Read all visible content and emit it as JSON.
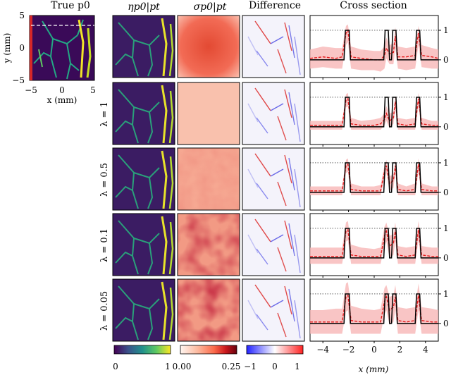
{
  "headers": {
    "true_p0": "True p0",
    "eta": "ηp0|pt",
    "sigma": "σp0|pt",
    "difference": "Difference",
    "cross_section": "Cross section"
  },
  "true_panel": {
    "ylabel": "y (mm)",
    "xlabel": "x (mm)",
    "xticks": [
      "−5",
      "0",
      "5"
    ],
    "yticks": [
      "5",
      "0",
      "−5"
    ]
  },
  "row_labels": [
    "",
    "λ = 1",
    "λ = 0.5",
    "λ = 0.1",
    "λ = 0.05"
  ],
  "colorbars": {
    "eta": {
      "ticks": [
        "0",
        "1"
      ],
      "colors": [
        "#440154",
        "#3b528b",
        "#21918c",
        "#5ec962",
        "#fde725"
      ]
    },
    "sigma": {
      "ticks": [
        "0.00",
        "0.25"
      ],
      "colors": [
        "#fff5f0",
        "#fcbba1",
        "#fb6a4a",
        "#cb181d",
        "#67000d"
      ]
    },
    "difference": {
      "ticks": [
        "−1",
        "0",
        "1"
      ],
      "colors": [
        "#2222ff",
        "#ffffff",
        "#ff2222"
      ]
    }
  },
  "colors": {
    "truth": "#000000",
    "mean": "#e41a1c",
    "band": "#f7b7b7",
    "ref_line": "#000000"
  },
  "chart_data": {
    "type": "line",
    "xlabel": "x (mm)",
    "xlim": [
      -5,
      5
    ],
    "ylim": [
      -0.6,
      1.5
    ],
    "xticks": [
      -4,
      -2,
      0,
      2,
      4
    ],
    "yticks": [
      0,
      1
    ],
    "reference_line_y": 1,
    "truth_series": {
      "x": [
        -5,
        -2.35,
        -2.3,
        -2.25,
        -2.1,
        -1.95,
        -1.9,
        -1.85,
        0.75,
        0.8,
        0.85,
        1.1,
        1.15,
        1.2,
        1.35,
        1.4,
        1.45,
        1.7,
        1.75,
        1.8,
        3.2,
        3.25,
        3.3,
        3.55,
        3.6,
        3.65,
        5
      ],
      "y": [
        0,
        0,
        0.5,
        1,
        1,
        1,
        0.5,
        0,
        0,
        0.5,
        1,
        1,
        0.5,
        0,
        0,
        0.5,
        1,
        1,
        0.5,
        0,
        0,
        0.5,
        1,
        1,
        0.5,
        0,
        0
      ]
    },
    "panels": [
      {
        "row": "",
        "mean": {
          "x": [
            -5,
            -4,
            -3,
            -2.5,
            -2.2,
            -2.05,
            -1.8,
            -1,
            0,
            0.5,
            0.8,
            0.95,
            1.2,
            1.5,
            1.65,
            1.85,
            2.5,
            3.2,
            3.45,
            3.7,
            4.5,
            5
          ],
          "y": [
            0.05,
            0.1,
            0.05,
            0.1,
            0.9,
            1.0,
            0.1,
            0.05,
            0,
            0,
            0.15,
            0.4,
            0.2,
            0.25,
            0.8,
            0.1,
            0.1,
            0.15,
            0.9,
            0.15,
            0.1,
            0.05
          ]
        },
        "band_upper": [
          0.35,
          0.45,
          0.4,
          0.4,
          1.15,
          1.2,
          0.45,
          0.35,
          0.3,
          0.3,
          0.45,
          0.75,
          0.5,
          0.55,
          1.1,
          0.45,
          0.4,
          0.45,
          1.15,
          0.5,
          0.4,
          0.35
        ],
        "band_lower": [
          -0.3,
          -0.25,
          -0.3,
          -0.3,
          0.5,
          0.6,
          -0.3,
          -0.35,
          -0.35,
          -0.4,
          -0.3,
          0.05,
          -0.15,
          -0.15,
          0.4,
          -0.3,
          -0.35,
          -0.3,
          0.5,
          -0.25,
          -0.3,
          -0.3
        ]
      },
      {
        "row": "λ = 1",
        "mean": {
          "x": [
            -5,
            -4,
            -3,
            -2.5,
            -2.2,
            -2.05,
            -1.8,
            -1,
            0,
            0.5,
            0.8,
            0.95,
            1.2,
            1.5,
            1.65,
            1.85,
            2.5,
            3.2,
            3.45,
            3.7,
            4.5,
            5
          ],
          "y": [
            0.05,
            0.05,
            0.05,
            0.05,
            0.9,
            0.95,
            0.1,
            0.05,
            0.05,
            0.1,
            0.25,
            0.45,
            0.2,
            0.3,
            0.85,
            0.1,
            0.05,
            0.1,
            0.95,
            0.1,
            0.05,
            0.05
          ]
        },
        "band_upper": [
          0.2,
          0.2,
          0.2,
          0.2,
          1.1,
          1.15,
          0.3,
          0.2,
          0.25,
          0.3,
          0.45,
          0.7,
          0.45,
          0.5,
          1.05,
          0.3,
          0.25,
          0.3,
          1.15,
          0.3,
          0.2,
          0.2
        ],
        "band_lower": [
          -0.1,
          -0.1,
          -0.1,
          -0.1,
          0.65,
          0.7,
          -0.1,
          -0.1,
          -0.1,
          -0.1,
          0.05,
          0.2,
          -0.05,
          0.1,
          0.6,
          -0.1,
          -0.1,
          -0.1,
          0.7,
          -0.1,
          -0.1,
          -0.1
        ]
      },
      {
        "row": "λ = 0.5",
        "mean": {
          "x": [
            -5,
            -4,
            -3,
            -2.5,
            -2.2,
            -2.05,
            -1.8,
            -1,
            0,
            0.5,
            0.8,
            0.95,
            1.2,
            1.5,
            1.65,
            1.85,
            2.5,
            3.2,
            3.45,
            3.7,
            4.5,
            5
          ],
          "y": [
            0.05,
            0.05,
            0.05,
            0.05,
            0.9,
            0.95,
            0.1,
            0.05,
            0.05,
            0.05,
            0.7,
            0.9,
            0.3,
            0.4,
            0.9,
            0.1,
            0.05,
            0.1,
            0.95,
            0.1,
            0.05,
            0.05
          ]
        },
        "band_upper": [
          0.2,
          0.2,
          0.2,
          0.2,
          1.1,
          1.15,
          0.3,
          0.2,
          0.2,
          0.25,
          0.9,
          1.1,
          0.55,
          0.6,
          1.1,
          0.3,
          0.2,
          0.3,
          1.15,
          0.3,
          0.2,
          0.2
        ],
        "band_lower": [
          -0.1,
          -0.1,
          -0.1,
          -0.1,
          0.65,
          0.7,
          -0.1,
          -0.1,
          -0.1,
          -0.1,
          0.45,
          0.65,
          0.05,
          0.15,
          0.65,
          -0.1,
          -0.1,
          -0.1,
          0.7,
          -0.1,
          -0.1,
          -0.1
        ]
      },
      {
        "row": "λ = 0.1",
        "mean": {
          "x": [
            -5,
            -4,
            -3,
            -2.5,
            -2.2,
            -2.05,
            -1.8,
            -1,
            0,
            0.5,
            0.8,
            0.95,
            1.2,
            1.5,
            1.65,
            1.85,
            2.5,
            3.2,
            3.45,
            3.7,
            4.5,
            5
          ],
          "y": [
            0.05,
            0.05,
            0.05,
            0.05,
            0.9,
            0.95,
            0.1,
            0.05,
            0.05,
            0.05,
            0.75,
            0.9,
            0.4,
            0.5,
            0.9,
            0.1,
            0.05,
            0.1,
            0.95,
            0.1,
            0.05,
            0.05
          ]
        },
        "band_upper": [
          0.35,
          0.35,
          0.35,
          0.35,
          1.2,
          1.25,
          0.45,
          0.35,
          0.3,
          0.35,
          1.05,
          1.2,
          0.75,
          0.8,
          1.2,
          0.4,
          0.35,
          0.4,
          1.25,
          0.4,
          0.35,
          0.35
        ],
        "band_lower": [
          -0.2,
          -0.2,
          -0.2,
          -0.2,
          0.55,
          0.6,
          -0.2,
          -0.2,
          -0.2,
          -0.2,
          0.4,
          0.55,
          0.0,
          0.1,
          0.55,
          -0.2,
          -0.2,
          -0.2,
          0.6,
          -0.2,
          -0.2,
          -0.2
        ]
      },
      {
        "row": "λ = 0.05",
        "mean": {
          "x": [
            -5,
            -4,
            -3,
            -2.5,
            -2.2,
            -2.05,
            -1.8,
            -1,
            0,
            0.5,
            0.8,
            0.95,
            1.2,
            1.5,
            1.65,
            1.85,
            2.5,
            3.2,
            3.45,
            3.7,
            4.5,
            5
          ],
          "y": [
            0.05,
            0.05,
            0.05,
            0.05,
            0.9,
            0.95,
            0.1,
            0.05,
            0.05,
            0.05,
            0.75,
            0.9,
            0.45,
            0.55,
            0.9,
            0.1,
            0.05,
            0.1,
            0.95,
            0.1,
            0.05,
            0.05
          ]
        },
        "band_upper": [
          0.45,
          0.45,
          0.5,
          0.5,
          1.35,
          1.4,
          0.6,
          0.5,
          0.45,
          0.5,
          1.2,
          1.3,
          0.9,
          0.95,
          1.3,
          0.55,
          0.5,
          0.55,
          1.35,
          0.55,
          0.5,
          0.45
        ],
        "band_lower": [
          -0.35,
          -0.35,
          -0.35,
          -0.35,
          0.4,
          0.45,
          -0.35,
          -0.35,
          -0.35,
          -0.35,
          0.3,
          0.45,
          -0.05,
          0.05,
          0.45,
          -0.35,
          -0.35,
          -0.35,
          0.45,
          -0.35,
          -0.35,
          -0.35
        ]
      }
    ]
  }
}
